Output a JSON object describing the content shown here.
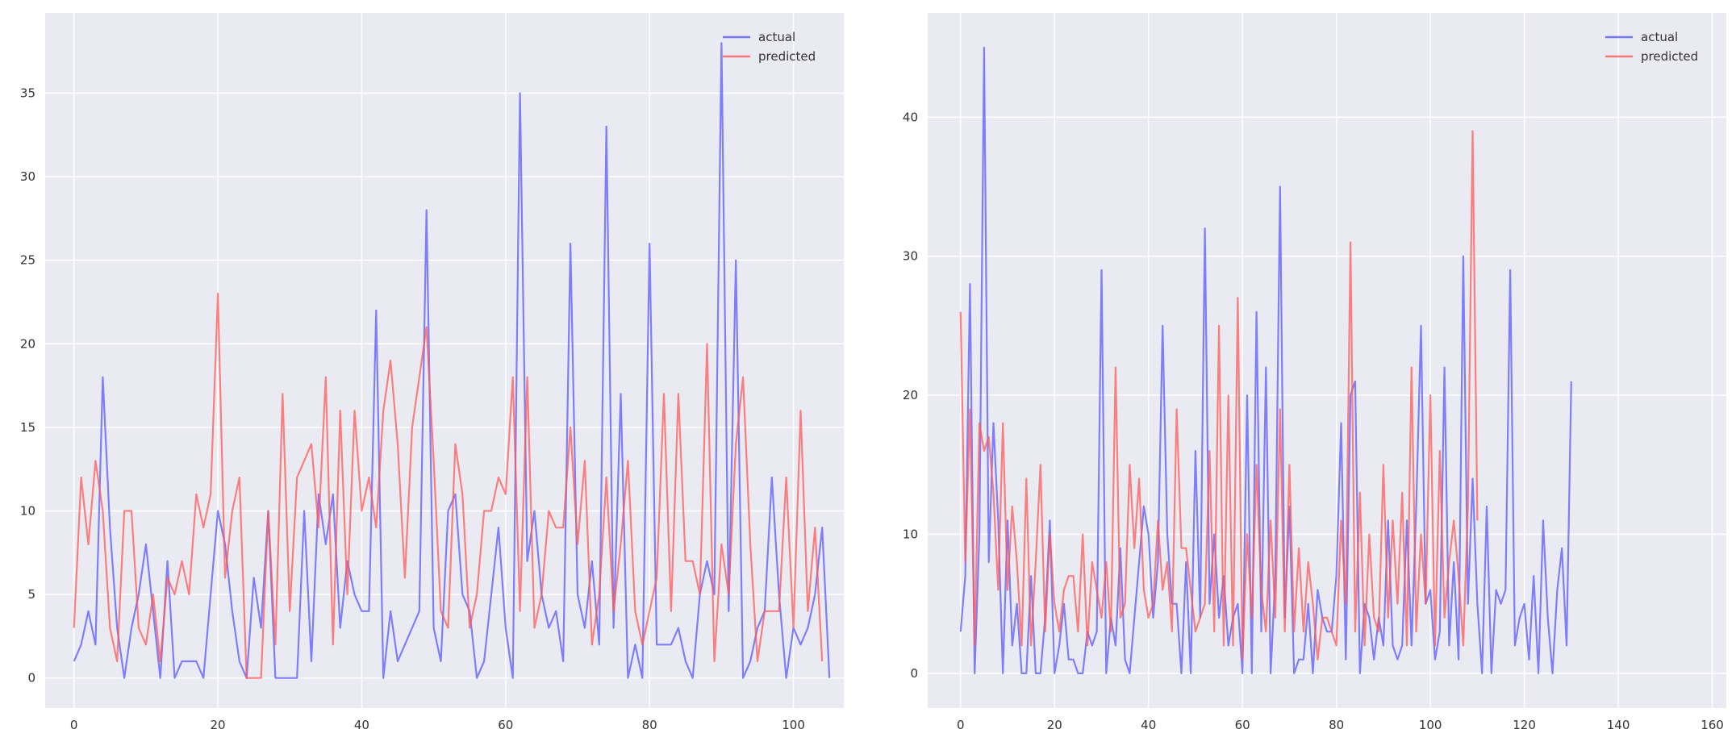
{
  "chart_data": [
    {
      "type": "line",
      "xlim": [
        -4,
        107
      ],
      "ylim": [
        -1.8,
        39.8
      ],
      "xticks": [
        0,
        20,
        40,
        60,
        80,
        100
      ],
      "yticks": [
        0,
        5,
        10,
        15,
        20,
        25,
        30,
        35
      ],
      "grid": true,
      "legend": "top-right",
      "series": [
        {
          "name": "actual",
          "color": "#5a5aff",
          "values": [
            1,
            2,
            4,
            2,
            18,
            9,
            3,
            0,
            3,
            5,
            8,
            4,
            0,
            7,
            0,
            1,
            1,
            1,
            0,
            5,
            10,
            8,
            4,
            1,
            0,
            6,
            3,
            10,
            0,
            0,
            0,
            0,
            10,
            1,
            11,
            8,
            11,
            3,
            7,
            5,
            4,
            4,
            22,
            0,
            4,
            1,
            2,
            3,
            4,
            28,
            3,
            1,
            10,
            11,
            5,
            4,
            0,
            1,
            5,
            9,
            3,
            0,
            35,
            7,
            10,
            5,
            3,
            4,
            1,
            26,
            5,
            3,
            7,
            2,
            33,
            3,
            17,
            0,
            2,
            0,
            26,
            2,
            2,
            2,
            3,
            1,
            0,
            5,
            7,
            5,
            38,
            4,
            25,
            0,
            1,
            3,
            4,
            12,
            5,
            0,
            3,
            2,
            3,
            5,
            9,
            0
          ]
        },
        {
          "name": "predicted",
          "color": "#ff5a5a",
          "values": [
            3,
            12,
            8,
            13,
            10,
            3,
            1,
            10,
            10,
            3,
            2,
            5,
            1,
            6,
            5,
            7,
            5,
            11,
            9,
            11,
            23,
            6,
            10,
            12,
            0,
            0,
            0,
            10,
            2,
            17,
            4,
            12,
            13,
            14,
            9,
            18,
            2,
            16,
            5,
            16,
            10,
            12,
            9,
            16,
            19,
            14,
            6,
            15,
            18,
            21,
            13,
            4,
            3,
            14,
            11,
            3,
            5,
            10,
            10,
            12,
            11,
            18,
            4,
            18,
            3,
            5,
            10,
            9,
            9,
            15,
            8,
            13,
            2,
            5,
            12,
            4,
            8,
            13,
            4,
            2,
            4,
            6,
            17,
            4,
            17,
            7,
            7,
            5,
            20,
            1,
            8,
            5,
            14,
            18,
            8,
            1,
            4,
            4,
            4,
            12,
            3,
            16,
            4,
            9,
            1
          ]
        }
      ]
    },
    {
      "type": "line",
      "xlim": [
        -7,
        163
      ],
      "ylim": [
        -2.5,
        47.5
      ],
      "xticks": [
        0,
        20,
        40,
        60,
        80,
        100,
        120,
        140,
        160
      ],
      "yticks": [
        0,
        10,
        20,
        30,
        40
      ],
      "grid": true,
      "legend": "top-right",
      "series": [
        {
          "name": "actual",
          "color": "#5a5aff",
          "values": [
            3,
            7,
            28,
            0,
            10,
            45,
            8,
            18,
            11,
            0,
            11,
            2,
            5,
            0,
            0,
            7,
            0,
            0,
            4,
            11,
            0,
            2,
            5,
            1,
            1,
            0,
            0,
            3,
            2,
            3,
            29,
            0,
            4,
            2,
            9,
            1,
            0,
            4,
            8,
            12,
            10,
            4,
            8,
            25,
            10,
            5,
            5,
            0,
            8,
            0,
            16,
            4,
            32,
            5,
            10,
            4,
            7,
            2,
            4,
            5,
            0,
            20,
            0,
            26,
            3,
            22,
            0,
            7,
            35,
            4,
            12,
            0,
            1,
            1,
            5,
            0,
            6,
            4,
            3,
            3,
            7,
            18,
            1,
            20,
            21,
            0,
            5,
            4,
            1,
            4,
            2,
            11,
            2,
            1,
            2,
            11,
            2,
            12,
            25,
            5,
            6,
            1,
            3,
            22,
            2,
            8,
            1,
            30,
            5,
            14,
            5,
            0,
            12,
            0,
            6,
            5,
            6,
            29,
            2,
            4,
            5,
            1,
            7,
            0,
            11,
            4,
            0,
            6,
            9,
            2,
            21
          ]
        },
        {
          "name": "predicted",
          "color": "#ff5a5a",
          "values": [
            26,
            8,
            19,
            2,
            18,
            16,
            17,
            13,
            6,
            18,
            6,
            12,
            8,
            2,
            14,
            2,
            8,
            15,
            3,
            10,
            5,
            3,
            6,
            7,
            7,
            3,
            10,
            2,
            8,
            6,
            4,
            8,
            3,
            22,
            4,
            5,
            15,
            9,
            14,
            6,
            4,
            5,
            11,
            6,
            8,
            3,
            19,
            9,
            9,
            6,
            3,
            4,
            5,
            16,
            3,
            25,
            2,
            20,
            2,
            27,
            1,
            10,
            4,
            15,
            6,
            3,
            11,
            4,
            19,
            3,
            15,
            3,
            9,
            3,
            8,
            5,
            1,
            4,
            4,
            3,
            2,
            11,
            5,
            31,
            3,
            13,
            2,
            10,
            4,
            3,
            15,
            4,
            11,
            5,
            13,
            2,
            22,
            3,
            10,
            5,
            20,
            2,
            16,
            4,
            8,
            11,
            7,
            2,
            12,
            39,
            11
          ]
        }
      ]
    }
  ]
}
